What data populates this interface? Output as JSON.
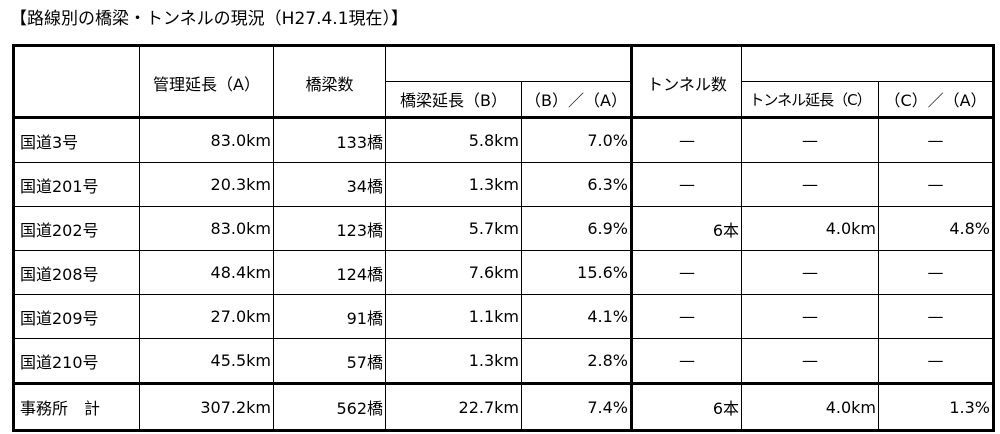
{
  "header": {
    "title": "【路線別の橋梁・トンネルの現況（H27.4.1現在）】"
  },
  "table": {
    "columns": [
      "管理延長（A）",
      "橋梁数",
      "橋梁延長（B）",
      "（B）／（A）",
      "トンネル数",
      "トンネル延長（C）",
      "（C）／（A）"
    ],
    "rows": [
      [
        "国道3号",
        "83.0km",
        "133橋",
        "5.8km",
        "7.0%",
        "—",
        "—",
        "—"
      ],
      [
        "国道201号",
        "20.3km",
        "34橋",
        "1.3km",
        "6.3%",
        "—",
        "—",
        "—"
      ],
      [
        "国道202号",
        "83.0km",
        "123橋",
        "5.7km",
        "6.9%",
        "6本",
        "4.0km",
        "4.8%"
      ],
      [
        "国道208号",
        "48.4km",
        "124橋",
        "7.6km",
        "15.6%",
        "—",
        "—",
        "—"
      ],
      [
        "国道209号",
        "27.0km",
        "91橋",
        "1.1km",
        "4.1%",
        "—",
        "—",
        "—"
      ],
      [
        "国道210号",
        "45.5km",
        "57橋",
        "1.3km",
        "2.8%",
        "—",
        "—",
        "—"
      ]
    ],
    "total": [
      "事務所　計",
      "307.2km",
      "562橋",
      "22.7km",
      "7.4%",
      "6本",
      "4.0km",
      "1.3%"
    ]
  }
}
